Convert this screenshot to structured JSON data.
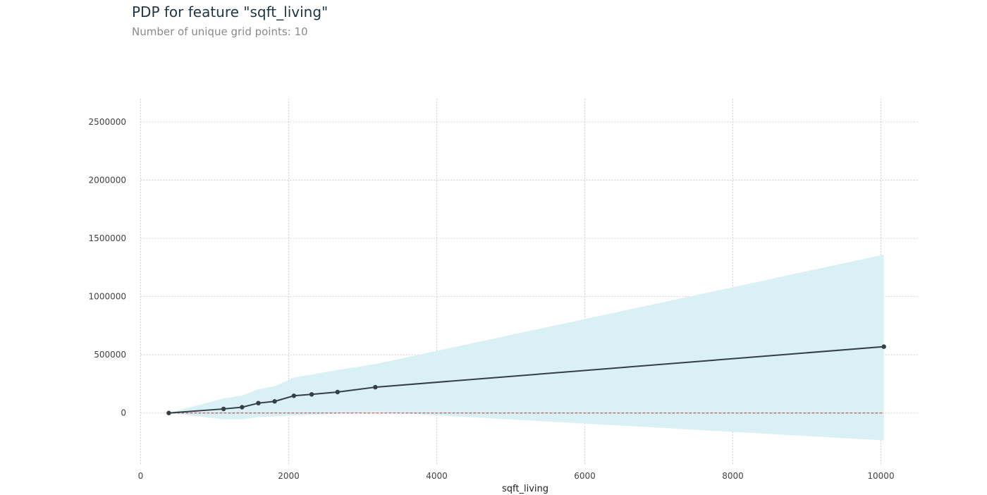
{
  "chart_data": {
    "type": "line",
    "title": "PDP for feature \"sqft_living\"",
    "subtitle": "Number of unique grid points: 10",
    "xlabel": "sqft_living",
    "ylabel": "",
    "xlim": [
      0,
      10500
    ],
    "ylim": [
      -450000,
      2700000
    ],
    "x_ticks": [
      0,
      2000,
      4000,
      6000,
      8000,
      10000
    ],
    "y_ticks": [
      0,
      500000,
      1000000,
      1500000,
      2000000,
      2500000
    ],
    "x_tick_labels": [
      "0",
      "2000",
      "4000",
      "6000",
      "8000",
      "10000"
    ],
    "y_tick_labels": [
      "0",
      "500000",
      "1000000",
      "1500000",
      "2000000",
      "2500000"
    ],
    "grid": true,
    "series": [
      {
        "x": [
          380,
          1120,
          1370,
          1590,
          1810,
          2070,
          2310,
          2660,
          3170,
          10040
        ],
        "values": [
          0,
          35000,
          50000,
          85000,
          100000,
          148000,
          160000,
          180000,
          222000,
          570000
        ],
        "color": "#333e46"
      }
    ],
    "band": {
      "x": [
        380,
        1120,
        1370,
        1590,
        1810,
        2070,
        2310,
        2660,
        3170,
        10040
      ],
      "upper": [
        0,
        125000,
        150000,
        205000,
        230000,
        305000,
        330000,
        370000,
        420000,
        1360000
      ],
      "lower": [
        0,
        -55000,
        -55000,
        -35000,
        -30000,
        -20000,
        -15000,
        -5000,
        10000,
        -235000
      ],
      "color": "#d9f1f4"
    },
    "reference_line": {
      "y": 0,
      "x_range": [
        380,
        10040
      ],
      "color": "#b33a3a"
    }
  }
}
